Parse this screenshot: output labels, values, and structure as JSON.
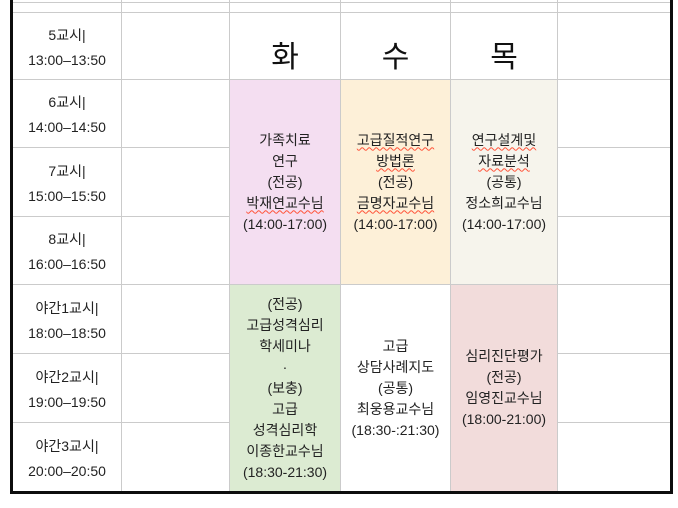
{
  "table": {
    "day_headers": [
      {
        "key": "tue",
        "label": "화"
      },
      {
        "key": "wed",
        "label": "수"
      },
      {
        "key": "thu",
        "label": "목"
      }
    ],
    "periods": [
      {
        "name": "5교시|",
        "time": "13:00–13:50"
      },
      {
        "name": "6교시|",
        "time": "14:00–14:50"
      },
      {
        "name": "7교시|",
        "time": "15:00–15:50"
      },
      {
        "name": "8교시|",
        "time": "16:00–16:50"
      },
      {
        "name": "야간1교시|",
        "time": "18:00–18:50"
      },
      {
        "name": "야간2교시|",
        "time": "19:00–19:50"
      },
      {
        "name": "야간3교시|",
        "time": "20:00–20:50"
      }
    ],
    "courses": [
      {
        "day": "화",
        "block": "day",
        "bg": "#f4def1",
        "lines": [
          {
            "text": "가족치료"
          },
          {
            "text": "연구"
          },
          {
            "text": "(전공)"
          },
          {
            "text": "박재연교수님",
            "misspell": true
          },
          {
            "text": "(14:00-17:00)"
          }
        ]
      },
      {
        "day": "수",
        "block": "day",
        "bg": "#fdf0d8",
        "lines": [
          {
            "text": "고급질적연구",
            "misspell": true
          },
          {
            "text": "방법론",
            "misspell": true
          },
          {
            "text": "(전공)"
          },
          {
            "text": "금명자교수님",
            "misspell": true
          },
          {
            "text": "(14:00-17:00)"
          }
        ]
      },
      {
        "day": "목",
        "block": "day",
        "bg": "#f6f4ec",
        "lines": [
          {
            "text": "연구설계및",
            "misspell": true
          },
          {
            "text": "자료분석",
            "misspell": true
          },
          {
            "text": "(공통)"
          },
          {
            "text": "정소희교수님"
          },
          {
            "text": "(14:00-17:00)"
          }
        ]
      },
      {
        "day": "화",
        "block": "night",
        "bg": "#dcebd2",
        "lines": [
          {
            "text": "(전공)"
          },
          {
            "text": "고급성격심리"
          },
          {
            "text": "학세미나"
          },
          {
            "text": "·"
          },
          {
            "text": "(보충)"
          },
          {
            "text": "고급"
          },
          {
            "text": "성격심리학"
          },
          {
            "text": "이종한교수님"
          },
          {
            "text": "(18:30-21:30)"
          }
        ]
      },
      {
        "day": "수",
        "block": "night",
        "bg": "#ffffff",
        "lines": [
          {
            "text": "고급"
          },
          {
            "text": "상담사례지도"
          },
          {
            "text": "(공통)"
          },
          {
            "text": "최웅용교수님"
          },
          {
            "text": "(18:30-:21:30)"
          }
        ]
      },
      {
        "day": "목",
        "block": "night",
        "bg": "#f2dcdb",
        "lines": [
          {
            "text": "심리진단평가"
          },
          {
            "text": "(전공)"
          },
          {
            "text": "임영진교수님"
          },
          {
            "text": "(18:00-21:00)"
          }
        ]
      }
    ],
    "colors": {
      "grid_line": "#cbcbcb",
      "outer_border": "#0d0d0d",
      "spellcheck_underline": "#ff5238",
      "fill_tue_day": "#f4def1",
      "fill_wed_day": "#fdf0d8",
      "fill_thu_day": "#f6f4ec",
      "fill_tue_night": "#dcebd2",
      "fill_wed_night": "#ffffff",
      "fill_thu_night": "#f2dcdb"
    }
  }
}
